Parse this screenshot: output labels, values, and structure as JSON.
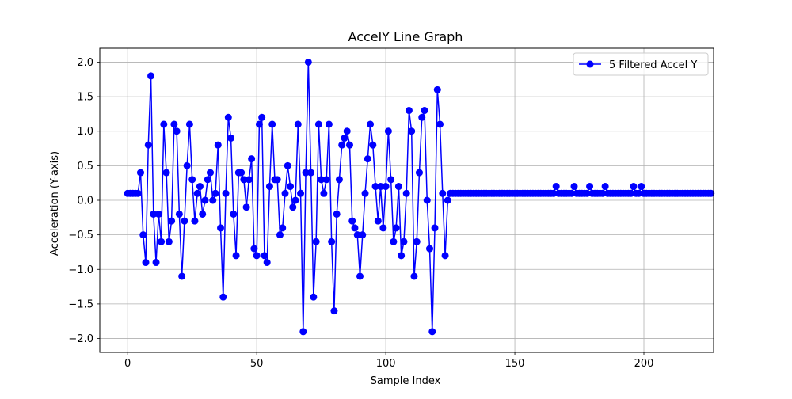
{
  "chart_data": {
    "type": "line",
    "title": "AccelY Line Graph",
    "xlabel": "Sample Index",
    "ylabel": "Acceleration (Y-axis)",
    "xlim": [
      -10.8,
      227.0
    ],
    "ylim": [
      -2.2,
      2.2
    ],
    "xticks": [
      0,
      50,
      100,
      150,
      200
    ],
    "yticks": [
      -2.0,
      -1.5,
      -1.0,
      -0.5,
      0.0,
      0.5,
      1.0,
      1.5,
      2.0
    ],
    "xtick_labels": [
      "0",
      "50",
      "100",
      "150",
      "200"
    ],
    "ytick_labels": [
      "−2.0",
      "−1.5",
      "−1.0",
      "−0.5",
      "0.0",
      "0.5",
      "1.0",
      "1.5",
      "2.0"
    ],
    "grid": true,
    "legend_position": "top-right",
    "series": [
      {
        "name": "5 Filtered Accel Y",
        "color": "#0000ff",
        "marker": "circle",
        "y": [
          0.1,
          0.1,
          0.1,
          0.1,
          0.1,
          0.4,
          -0.5,
          -0.9,
          0.8,
          1.8,
          -0.2,
          -0.9,
          -0.2,
          -0.6,
          1.1,
          0.4,
          -0.6,
          -0.3,
          1.1,
          1.0,
          -0.2,
          -1.1,
          -0.3,
          0.5,
          1.1,
          0.3,
          -0.3,
          0.1,
          0.2,
          -0.2,
          0.0,
          0.3,
          0.4,
          0.0,
          0.1,
          0.8,
          -0.4,
          -1.4,
          0.1,
          1.2,
          0.9,
          -0.2,
          -0.8,
          0.4,
          0.4,
          0.3,
          -0.1,
          0.3,
          0.6,
          -0.7,
          -0.8,
          1.1,
          1.2,
          -0.8,
          -0.9,
          0.2,
          1.1,
          0.3,
          0.3,
          -0.5,
          -0.4,
          0.1,
          0.5,
          0.2,
          -0.1,
          0.0,
          1.1,
          0.1,
          -1.9,
          0.4,
          2.0,
          0.4,
          -1.4,
          -0.6,
          1.1,
          0.3,
          0.1,
          0.3,
          1.1,
          -0.6,
          -1.6,
          -0.2,
          0.3,
          0.8,
          0.9,
          1.0,
          0.8,
          -0.3,
          -0.4,
          -0.5,
          -1.1,
          -0.5,
          0.1,
          0.6,
          1.1,
          0.8,
          0.2,
          -0.3,
          0.2,
          -0.4,
          0.2,
          1.0,
          0.3,
          -0.6,
          -0.4,
          0.2,
          -0.8,
          -0.6,
          0.1,
          1.3,
          1.0,
          -1.1,
          -0.6,
          0.4,
          1.2,
          1.3,
          0.0,
          -0.7,
          -1.9,
          -0.4,
          1.6,
          1.1,
          0.1,
          -0.8,
          0.0,
          0.1,
          0.1,
          0.1,
          0.1,
          0.1,
          0.1,
          0.1,
          0.1,
          0.1,
          0.1,
          0.1,
          0.1,
          0.1,
          0.1,
          0.1,
          0.1,
          0.1,
          0.1,
          0.1,
          0.1,
          0.1,
          0.1,
          0.1,
          0.1,
          0.1,
          0.1,
          0.1,
          0.1,
          0.1,
          0.1,
          0.1,
          0.1,
          0.1,
          0.1,
          0.1,
          0.1,
          0.1,
          0.1,
          0.1,
          0.1,
          0.1,
          0.2,
          0.1,
          0.1,
          0.1,
          0.1,
          0.1,
          0.1,
          0.2,
          0.1,
          0.1,
          0.1,
          0.1,
          0.1,
          0.2,
          0.1,
          0.1,
          0.1,
          0.1,
          0.1,
          0.2,
          0.1,
          0.1,
          0.1,
          0.1,
          0.1,
          0.1,
          0.1,
          0.1,
          0.1,
          0.1,
          0.2,
          0.1,
          0.1,
          0.2,
          0.1,
          0.1,
          0.1,
          0.1,
          0.1,
          0.1,
          0.1,
          0.1,
          0.1,
          0.1,
          0.1,
          0.1,
          0.1,
          0.1,
          0.1,
          0.1,
          0.1,
          0.1,
          0.1,
          0.1,
          0.1,
          0.1,
          0.1,
          0.1,
          0.1,
          0.1,
          0.1
        ]
      }
    ]
  }
}
